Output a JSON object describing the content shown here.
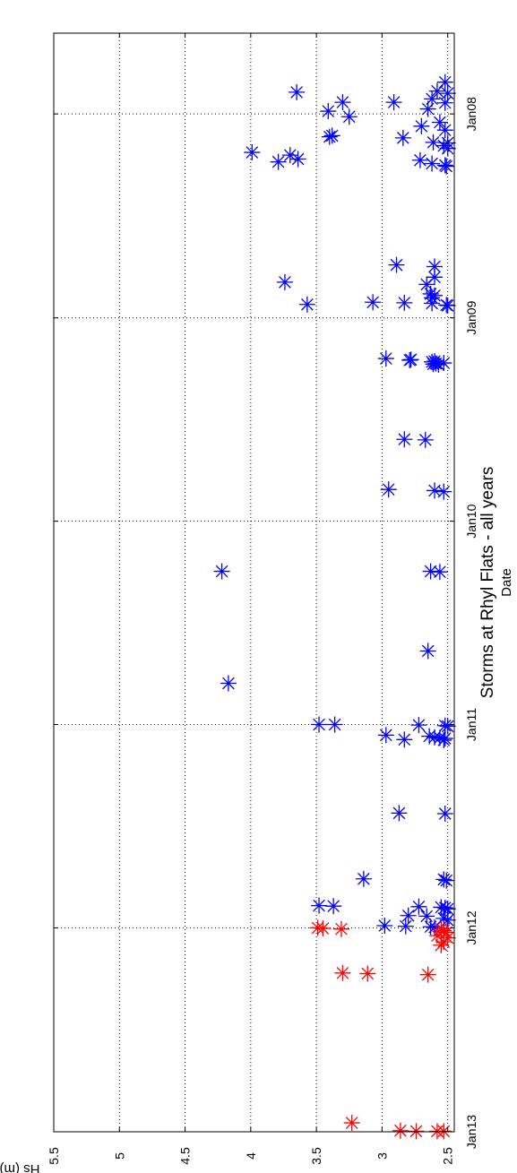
{
  "chart_data": {
    "type": "scatter",
    "title": "Storms at Rhyl Flats - all years",
    "xlabel": "Date",
    "ylabel": "Hs (m)",
    "orientation": "rotated 90 degrees counter-clockwise",
    "xlim": [
      "2007-08-09",
      "2013-01-01"
    ],
    "ylim": [
      2.45,
      5.5
    ],
    "yticks": [
      2.5,
      3,
      3.5,
      4,
      4.5,
      5,
      5.5
    ],
    "ytick_labels": [
      "2.5",
      "3",
      "3.5",
      "4",
      "4.5",
      "5",
      "5.5"
    ],
    "xticks": [
      "2008-01-01",
      "2009-01-01",
      "2010-01-01",
      "2011-01-01",
      "2012-01-01",
      "2013-01-01"
    ],
    "xtick_labels": [
      "Jan08",
      "Jan09",
      "Jan10",
      "Jan11",
      "Jan12",
      "Jan13"
    ],
    "grid": true,
    "grid_style": "dotted",
    "marker": "asterisk",
    "legend": "none",
    "series": [
      {
        "color": "#0000ff",
        "points": [
          {
            "x": "2007-11-05",
            "y": 2.52
          },
          {
            "x": "2007-11-21",
            "y": 2.58
          },
          {
            "x": "2007-11-23",
            "y": 3.65
          },
          {
            "x": "2007-11-25",
            "y": 2.5
          },
          {
            "x": "2007-12-05",
            "y": 2.62
          },
          {
            "x": "2007-12-11",
            "y": 3.3
          },
          {
            "x": "2007-12-11",
            "y": 2.91
          },
          {
            "x": "2007-12-12",
            "y": 2.52
          },
          {
            "x": "2007-12-23",
            "y": 2.65
          },
          {
            "x": "2007-12-27",
            "y": 3.41
          },
          {
            "x": "2008-01-06",
            "y": 3.25
          },
          {
            "x": "2008-01-16",
            "y": 2.56
          },
          {
            "x": "2008-01-23",
            "y": 2.7
          },
          {
            "x": "2008-01-30",
            "y": 2.52
          },
          {
            "x": "2008-02-09",
            "y": 3.38
          },
          {
            "x": "2008-02-11",
            "y": 3.4
          },
          {
            "x": "2008-02-13",
            "y": 2.84
          },
          {
            "x": "2008-02-21",
            "y": 2.61
          },
          {
            "x": "2008-02-22",
            "y": 2.5
          },
          {
            "x": "2008-02-27",
            "y": 2.53
          },
          {
            "x": "2008-03-03",
            "y": 2.5
          },
          {
            "x": "2008-03-10",
            "y": 3.99
          },
          {
            "x": "2008-03-15",
            "y": 3.7
          },
          {
            "x": "2008-03-22",
            "y": 3.64
          },
          {
            "x": "2008-03-24",
            "y": 2.71
          },
          {
            "x": "2008-03-27",
            "y": 3.79
          },
          {
            "x": "2008-03-30",
            "y": 2.62
          },
          {
            "x": "2008-04-02",
            "y": 2.52
          },
          {
            "x": "2008-04-04",
            "y": 2.51
          },
          {
            "x": "2008-09-28",
            "y": 2.89
          },
          {
            "x": "2008-10-01",
            "y": 2.6
          },
          {
            "x": "2008-10-20",
            "y": 2.6
          },
          {
            "x": "2008-10-29",
            "y": 3.74
          },
          {
            "x": "2008-11-02",
            "y": 2.66
          },
          {
            "x": "2008-11-19",
            "y": 2.63
          },
          {
            "x": "2008-11-22",
            "y": 2.6
          },
          {
            "x": "2008-11-26",
            "y": 2.62
          },
          {
            "x": "2008-12-04",
            "y": 3.07
          },
          {
            "x": "2008-12-05",
            "y": 2.83
          },
          {
            "x": "2008-12-06",
            "y": 2.62
          },
          {
            "x": "2008-12-08",
            "y": 3.57
          },
          {
            "x": "2008-12-09",
            "y": 2.51
          },
          {
            "x": "2008-12-10",
            "y": 2.5
          },
          {
            "x": "2009-03-15",
            "y": 2.97
          },
          {
            "x": "2009-03-17",
            "y": 2.78
          },
          {
            "x": "2009-03-18",
            "y": 2.79
          },
          {
            "x": "2009-03-20",
            "y": 2.6
          },
          {
            "x": "2009-03-21",
            "y": 2.62
          },
          {
            "x": "2009-03-23",
            "y": 2.53
          },
          {
            "x": "2009-03-24",
            "y": 2.59
          },
          {
            "x": "2009-03-25",
            "y": 2.61
          },
          {
            "x": "2009-03-26",
            "y": 2.57
          },
          {
            "x": "2009-08-07",
            "y": 2.83
          },
          {
            "x": "2009-08-08",
            "y": 2.67
          },
          {
            "x": "2009-11-05",
            "y": 2.95
          },
          {
            "x": "2009-11-07",
            "y": 2.6
          },
          {
            "x": "2009-11-09",
            "y": 2.53
          },
          {
            "x": "2010-04-01",
            "y": 4.22
          },
          {
            "x": "2010-04-01",
            "y": 2.63
          },
          {
            "x": "2010-04-02",
            "y": 2.56
          },
          {
            "x": "2010-08-22",
            "y": 2.65
          },
          {
            "x": "2010-10-19",
            "y": 4.17
          },
          {
            "x": "2011-01-01",
            "y": 3.48
          },
          {
            "x": "2011-01-01",
            "y": 3.36
          },
          {
            "x": "2011-01-02",
            "y": 2.72
          },
          {
            "x": "2011-01-03",
            "y": 2.52
          },
          {
            "x": "2011-01-04",
            "y": 2.5
          },
          {
            "x": "2011-01-20",
            "y": 2.97
          },
          {
            "x": "2011-01-22",
            "y": 2.64
          },
          {
            "x": "2011-01-24",
            "y": 2.6
          },
          {
            "x": "2011-01-25",
            "y": 2.56
          },
          {
            "x": "2011-01-26",
            "y": 2.52
          },
          {
            "x": "2011-01-28",
            "y": 2.83
          },
          {
            "x": "2011-01-29",
            "y": 2.53
          },
          {
            "x": "2011-06-09",
            "y": 2.87
          },
          {
            "x": "2011-06-10",
            "y": 2.52
          },
          {
            "x": "2011-10-05",
            "y": 3.14
          },
          {
            "x": "2011-10-06",
            "y": 2.53
          },
          {
            "x": "2011-10-08",
            "y": 2.51
          },
          {
            "x": "2011-11-22",
            "y": 3.48
          },
          {
            "x": "2011-11-23",
            "y": 3.37
          },
          {
            "x": "2011-11-24",
            "y": 2.72
          },
          {
            "x": "2011-11-25",
            "y": 2.55
          },
          {
            "x": "2011-11-26",
            "y": 2.52
          },
          {
            "x": "2011-11-28",
            "y": 2.5
          },
          {
            "x": "2011-12-10",
            "y": 2.8
          },
          {
            "x": "2011-12-11",
            "y": 2.66
          },
          {
            "x": "2011-12-15",
            "y": 2.53
          },
          {
            "x": "2011-12-18",
            "y": 2.5
          },
          {
            "x": "2011-12-28",
            "y": 2.98
          },
          {
            "x": "2011-12-29",
            "y": 2.82
          },
          {
            "x": "2011-12-30",
            "y": 2.63
          },
          {
            "x": "2011-12-31",
            "y": 2.6
          }
        ]
      },
      {
        "color": "#ff0000",
        "points": [
          {
            "x": "2012-01-01",
            "y": 3.49
          },
          {
            "x": "2012-01-02",
            "y": 3.45
          },
          {
            "x": "2012-01-03",
            "y": 3.31
          },
          {
            "x": "2012-01-03",
            "y": 2.55
          },
          {
            "x": "2012-01-06",
            "y": 2.53
          },
          {
            "x": "2012-01-09",
            "y": 2.51
          },
          {
            "x": "2012-01-15",
            "y": 2.58
          },
          {
            "x": "2012-01-19",
            "y": 2.5
          },
          {
            "x": "2012-01-26",
            "y": 2.53
          },
          {
            "x": "2012-02-01",
            "y": 2.55
          },
          {
            "x": "2012-03-22",
            "y": 3.3
          },
          {
            "x": "2012-03-23",
            "y": 3.11
          },
          {
            "x": "2012-03-25",
            "y": 2.65
          },
          {
            "x": "2012-12-16",
            "y": 3.23
          },
          {
            "x": "2012-12-30",
            "y": 2.86
          },
          {
            "x": "2012-12-31",
            "y": 2.74
          },
          {
            "x": "2012-12-31",
            "y": 2.58
          },
          {
            "x": "2012-12-31",
            "y": 2.53
          }
        ]
      }
    ]
  }
}
